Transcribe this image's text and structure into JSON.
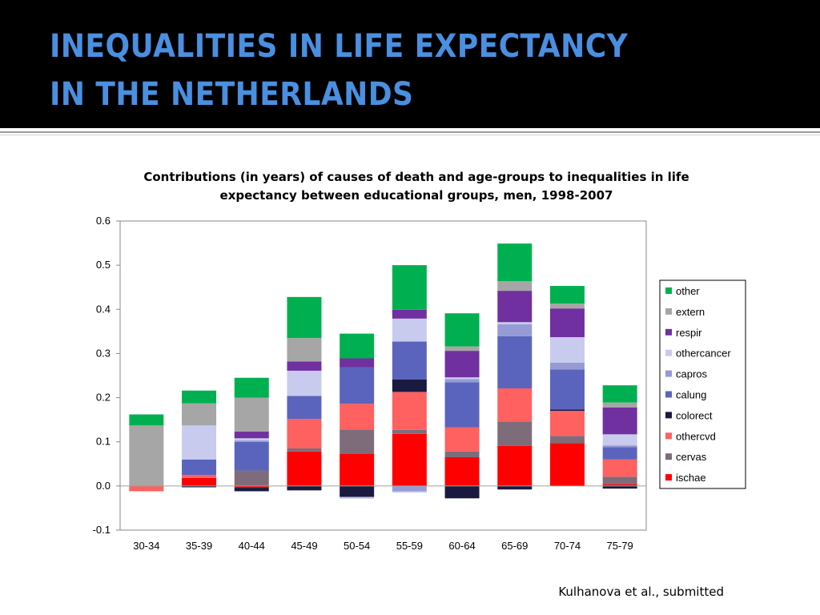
{
  "slide": {
    "title_line1": "INEQUALITIES IN LIFE EXPECTANCY",
    "title_line2": "IN THE NETHERLANDS",
    "source": "Kulhanova et al., submitted"
  },
  "chart_data": {
    "type": "bar",
    "stacked": true,
    "title_line1": "Contributions (in years) of causes of death and age-groups to inequalities in life",
    "title_line2": "expectancy between educational groups, men, 1998-2007",
    "categories": [
      "30-34",
      "35-39",
      "40-44",
      "45-49",
      "50-54",
      "55-59",
      "60-64",
      "65-69",
      "70-74",
      "75-79"
    ],
    "ylim": [
      -0.1,
      0.6
    ],
    "yticks": [
      "0.6",
      "0.5",
      "0.4",
      "0.3",
      "0.2",
      "0.1",
      "0.0",
      "-0.1"
    ],
    "ytick_values": [
      0.6,
      0.5,
      0.4,
      0.3,
      0.2,
      0.1,
      0.0,
      -0.1
    ],
    "legend_position": "right",
    "series": [
      {
        "name": "ischae",
        "color": "#ff0000",
        "values": [
          0,
          0.018,
          -0.004,
          0.078,
          0.073,
          0.118,
          0.065,
          0.091,
          0.097,
          0.004
        ]
      },
      {
        "name": "cervas",
        "color": "#7f6c7b",
        "values": [
          0,
          0,
          0.035,
          0.007,
          0.055,
          0.009,
          0.013,
          0.055,
          0.016,
          0.017
        ]
      },
      {
        "name": "othercvd",
        "color": "#ff6161",
        "values": [
          -0.012,
          0.007,
          0,
          0.067,
          0.058,
          0.086,
          0.055,
          0.075,
          0.057,
          0.039
        ]
      },
      {
        "name": "colorect",
        "color": "#1a1a40",
        "values": [
          0,
          -0.003,
          -0.008,
          -0.01,
          -0.025,
          0.028,
          -0.028,
          -0.008,
          0.003,
          -0.006
        ]
      },
      {
        "name": "calung",
        "color": "#5b64bd",
        "values": [
          0,
          0.035,
          0.065,
          0.052,
          0.083,
          0.086,
          0.102,
          0.118,
          0.091,
          0.028
        ]
      },
      {
        "name": "capros",
        "color": "#969bd6",
        "values": [
          0,
          0,
          0.003,
          0,
          0,
          -0.012,
          0.007,
          0.027,
          0.015,
          0.004
        ]
      },
      {
        "name": "othercancer",
        "color": "#c8cbee",
        "values": [
          0,
          0.077,
          0.005,
          0.057,
          0,
          0.052,
          0.004,
          0.005,
          0.058,
          0.025
        ]
      },
      {
        "name": "respir",
        "color": "#7030a0",
        "values": [
          0,
          0,
          0.015,
          0.021,
          0.02,
          0.02,
          0.06,
          0.071,
          0.065,
          0.061
        ]
      },
      {
        "name": "extern",
        "color": "#a6a6a6",
        "values": [
          0.137,
          0.05,
          0.077,
          0.053,
          0,
          0,
          0.01,
          0.022,
          0.011,
          0.011
        ]
      },
      {
        "name": "other",
        "color": "#00b050",
        "values": [
          0.025,
          0.029,
          0.045,
          0.093,
          0.056,
          0.101,
          0.075,
          0.085,
          0.04,
          0.039
        ]
      }
    ],
    "negative_extra": [
      {
        "category": "50-54",
        "name": "othercancer",
        "value": -0.004
      },
      {
        "category": "55-59",
        "name": "othercancer",
        "value": -0.003
      }
    ]
  }
}
